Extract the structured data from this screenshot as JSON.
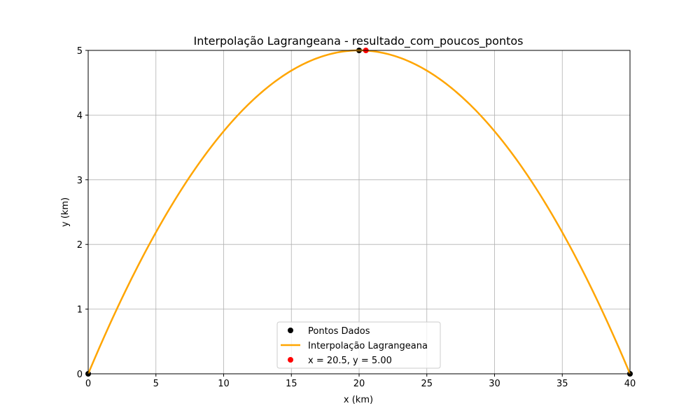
{
  "chart_data": {
    "type": "line",
    "title": "Interpolação Lagrangeana - resultado_com_poucos_pontos",
    "xlabel": "x (km)",
    "ylabel": "y (km)",
    "xlim": [
      0,
      40
    ],
    "ylim": [
      0,
      5
    ],
    "xticks": [
      0,
      5,
      10,
      15,
      20,
      25,
      30,
      35,
      40
    ],
    "yticks": [
      0,
      1,
      2,
      3,
      4,
      5
    ],
    "grid": true,
    "legend_position": "lower center",
    "series": [
      {
        "name": "Pontos Dados",
        "kind": "scatter",
        "color": "#000000",
        "x": [
          0,
          20,
          40
        ],
        "y": [
          0,
          5,
          0
        ]
      },
      {
        "name": "Interpolação Lagrangeana",
        "kind": "line",
        "color": "#ffa500",
        "polynomial": "y = -(x^2)/80 + x/2",
        "x_range": [
          0,
          40
        ]
      },
      {
        "name": "x = 20.5, y = 5.00",
        "kind": "scatter",
        "color": "#ff0000",
        "x": [
          20.5
        ],
        "y": [
          5.0
        ]
      }
    ]
  }
}
